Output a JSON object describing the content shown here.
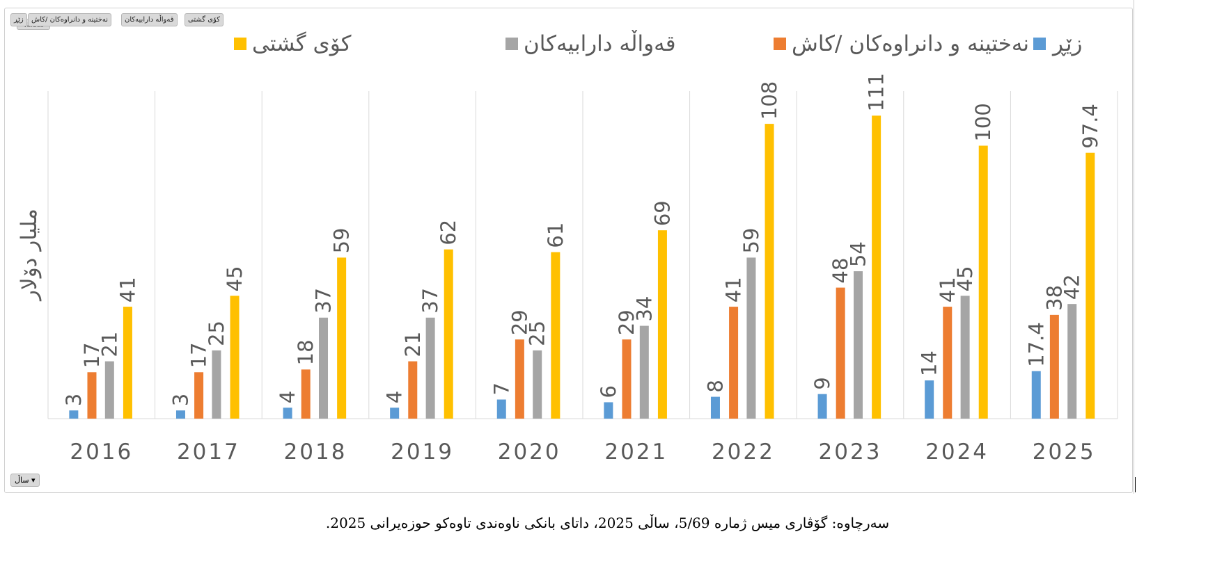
{
  "field_buttons": [
    "زێڕ",
    "نەختینە و دانراوەکان /کاش",
    "قەواڵە دارابیەکان",
    "کۆی گشتی"
  ],
  "values_button": "Values",
  "axis_button": "ساڵ",
  "axis_button_icon": "dropdown-arrow-icon",
  "caption": "سەرچاوە: گۆڤاری میس ژمارە 5/69، ساڵی 2025، داتای بانکی ناوەندی تاوەکو حوزەیرانی 2025.",
  "chart_data": {
    "type": "bar",
    "title": "",
    "xlabel": "",
    "ylabel": "ملیار دۆلار",
    "ylim": [
      0,
      120
    ],
    "grid": "vertical separators",
    "legend": "top",
    "categories": [
      "2016",
      "2017",
      "2018",
      "2019",
      "2020",
      "2021",
      "2022",
      "2023",
      "2024",
      "2025"
    ],
    "series": [
      {
        "name": "زێڕ",
        "color": "#5b9bd5",
        "values": [
          3,
          3,
          4,
          4,
          7,
          6,
          8,
          9,
          14,
          17.4
        ]
      },
      {
        "name": "نەختینە و دانراوەکان /کاش",
        "color": "#ed7d31",
        "values": [
          17,
          17,
          18,
          21,
          29,
          29,
          41,
          48,
          41,
          38
        ]
      },
      {
        "name": "قەواڵە دارابیەکان",
        "color": "#a5a5a5",
        "values": [
          21,
          25,
          37,
          37,
          25,
          34,
          59,
          54,
          45,
          42
        ]
      },
      {
        "name": "کۆی گشتی",
        "color": "#ffc000",
        "values": [
          41,
          45,
          59,
          62,
          61,
          69,
          108,
          111,
          100,
          97.4
        ]
      }
    ]
  }
}
